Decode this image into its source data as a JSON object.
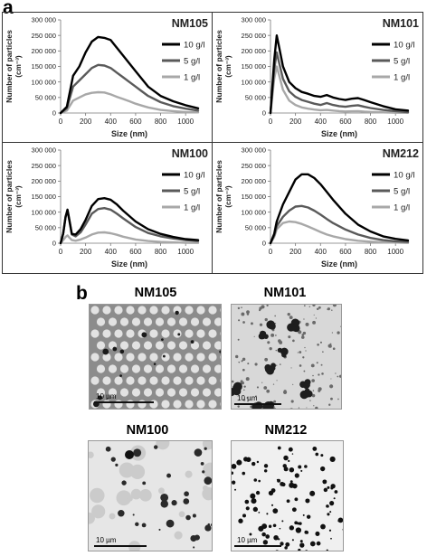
{
  "labels": {
    "panel_a": "a",
    "panel_b": "b"
  },
  "chart_data": [
    {
      "type": "line",
      "title": "NM105",
      "xlabel": "Size (nm)",
      "ylabel": "Number of particles",
      "yunit": "(cm⁻³)",
      "xlim": [
        0,
        1100
      ],
      "ylim": [
        0,
        300000
      ],
      "xticks": [
        "0",
        "200",
        "400",
        "600",
        "800",
        "1000"
      ],
      "yticks": [
        "0",
        "50 000",
        "100 000",
        "150 000",
        "200 000",
        "250 000",
        "300 000"
      ],
      "legend_position": "right",
      "x": [
        0,
        50,
        100,
        150,
        200,
        250,
        300,
        350,
        400,
        450,
        500,
        550,
        600,
        650,
        700,
        800,
        900,
        1000,
        1100
      ],
      "series": [
        {
          "name": "10 g/l",
          "color": "#000000",
          "values": [
            0,
            20000,
            120000,
            150000,
            195000,
            230000,
            245000,
            242000,
            235000,
            210000,
            185000,
            160000,
            135000,
            110000,
            85000,
            55000,
            38000,
            25000,
            15000
          ]
        },
        {
          "name": "5 g/l",
          "color": "#5a5a5a",
          "values": [
            0,
            15000,
            85000,
            105000,
            125000,
            145000,
            155000,
            153000,
            145000,
            130000,
            115000,
            100000,
            85000,
            70000,
            55000,
            35000,
            22000,
            14000,
            8000
          ]
        },
        {
          "name": "1 g/l",
          "color": "#a8a8a8",
          "values": [
            0,
            8000,
            40000,
            50000,
            60000,
            65000,
            67000,
            66000,
            60000,
            52000,
            45000,
            38000,
            30000,
            24000,
            18000,
            10000,
            6000,
            3000,
            2000
          ]
        }
      ]
    },
    {
      "type": "line",
      "title": "NM101",
      "xlabel": "Size (nm)",
      "ylabel": "Number of particles",
      "yunit": "(cm⁻³)",
      "xlim": [
        0,
        1100
      ],
      "ylim": [
        0,
        300000
      ],
      "xticks": [
        "0",
        "200",
        "400",
        "600",
        "800",
        "1000"
      ],
      "yticks": [
        "0",
        "50 000",
        "100 000",
        "150 000",
        "200 000",
        "250 000",
        "300 000"
      ],
      "legend_position": "right",
      "x": [
        0,
        30,
        50,
        70,
        100,
        150,
        200,
        250,
        300,
        350,
        400,
        450,
        500,
        550,
        600,
        650,
        700,
        750,
        800,
        900,
        1000,
        1100
      ],
      "series": [
        {
          "name": "10 g/l",
          "color": "#000000",
          "values": [
            0,
            170000,
            250000,
            210000,
            150000,
            100000,
            80000,
            68000,
            62000,
            55000,
            52000,
            58000,
            50000,
            45000,
            42000,
            46000,
            48000,
            42000,
            35000,
            22000,
            12000,
            8000
          ]
        },
        {
          "name": "5 g/l",
          "color": "#5a5a5a",
          "values": [
            0,
            140000,
            195000,
            160000,
            110000,
            70000,
            52000,
            42000,
            36000,
            30000,
            26000,
            32000,
            26000,
            22000,
            20000,
            23000,
            25000,
            20000,
            16000,
            10000,
            6000,
            3000
          ]
        },
        {
          "name": "1 g/l",
          "color": "#a8a8a8",
          "values": [
            0,
            110000,
            150000,
            120000,
            75000,
            40000,
            26000,
            18000,
            14000,
            11000,
            9000,
            10000,
            8000,
            6000,
            5000,
            5500,
            6000,
            4500,
            3500,
            2000,
            1000,
            500
          ]
        }
      ]
    },
    {
      "type": "line",
      "title": "NM100",
      "xlabel": "Size (nm)",
      "ylabel": "Number of particles",
      "yunit": "(cm⁻³)",
      "xlim": [
        0,
        1100
      ],
      "ylim": [
        0,
        300000
      ],
      "xticks": [
        "0",
        "200",
        "400",
        "600",
        "800",
        "1000"
      ],
      "yticks": [
        "0",
        "50 000",
        "100 000",
        "150 000",
        "200 000",
        "250 000",
        "300 000"
      ],
      "legend_position": "right",
      "x": [
        0,
        20,
        40,
        55,
        70,
        90,
        120,
        160,
        200,
        250,
        300,
        350,
        400,
        450,
        500,
        600,
        700,
        800,
        900,
        1000,
        1100
      ],
      "series": [
        {
          "name": "10 g/l",
          "color": "#000000",
          "values": [
            0,
            30000,
            85000,
            108000,
            75000,
            30000,
            28000,
            45000,
            75000,
            120000,
            142000,
            145000,
            140000,
            125000,
            105000,
            70000,
            45000,
            30000,
            20000,
            13000,
            10000
          ]
        },
        {
          "name": "5 g/l",
          "color": "#5a5a5a",
          "values": [
            0,
            30000,
            85000,
            105000,
            72000,
            28000,
            22000,
            35000,
            60000,
            95000,
            110000,
            113000,
            108000,
            95000,
            80000,
            52000,
            33000,
            22000,
            15000,
            10000,
            7000
          ]
        },
        {
          "name": "1 g/l",
          "color": "#a8a8a8",
          "values": [
            0,
            10000,
            20000,
            25000,
            18000,
            10000,
            8000,
            12000,
            18000,
            28000,
            34000,
            35000,
            32000,
            27000,
            21000,
            12000,
            7000,
            4000,
            2500,
            1500,
            1000
          ]
        }
      ]
    },
    {
      "type": "line",
      "title": "NM212",
      "xlabel": "Size (nm)",
      "ylabel": "Number of particles",
      "yunit": "(cm⁻³)",
      "xlim": [
        0,
        1100
      ],
      "ylim": [
        0,
        300000
      ],
      "xticks": [
        "0",
        "200",
        "400",
        "600",
        "800",
        "1000"
      ],
      "yticks": [
        "0",
        "50 000",
        "100 000",
        "150 000",
        "200 000",
        "250 000",
        "300 000"
      ],
      "legend_position": "right",
      "x": [
        0,
        30,
        50,
        100,
        150,
        200,
        250,
        300,
        350,
        400,
        450,
        500,
        600,
        700,
        800,
        900,
        1000,
        1100
      ],
      "series": [
        {
          "name": "10 g/l",
          "color": "#000000",
          "values": [
            0,
            30000,
            70000,
            125000,
            165000,
            205000,
            222000,
            222000,
            210000,
            190000,
            165000,
            140000,
            95000,
            60000,
            38000,
            22000,
            14000,
            9000
          ]
        },
        {
          "name": "5 g/l",
          "color": "#5a5a5a",
          "values": [
            0,
            25000,
            55000,
            85000,
            105000,
            118000,
            120000,
            115000,
            105000,
            92000,
            78000,
            65000,
            44000,
            28000,
            17000,
            10000,
            6000,
            4000
          ]
        },
        {
          "name": "1 g/l",
          "color": "#a8a8a8",
          "values": [
            0,
            20000,
            45000,
            65000,
            70000,
            68000,
            62000,
            54000,
            45000,
            36000,
            28000,
            22000,
            13000,
            8000,
            5000,
            3000,
            2000,
            1000
          ]
        }
      ]
    }
  ],
  "micrographs": [
    {
      "title": "NM105",
      "scale_label": "10 µm",
      "texture": "holey-film"
    },
    {
      "title": "NM101",
      "scale_label": "10 µm",
      "texture": "aggregates"
    },
    {
      "title": "NM100",
      "scale_label": "10 µm",
      "texture": "large-particles"
    },
    {
      "title": "NM212",
      "scale_label": "10 µm",
      "texture": "dense-particles"
    }
  ]
}
